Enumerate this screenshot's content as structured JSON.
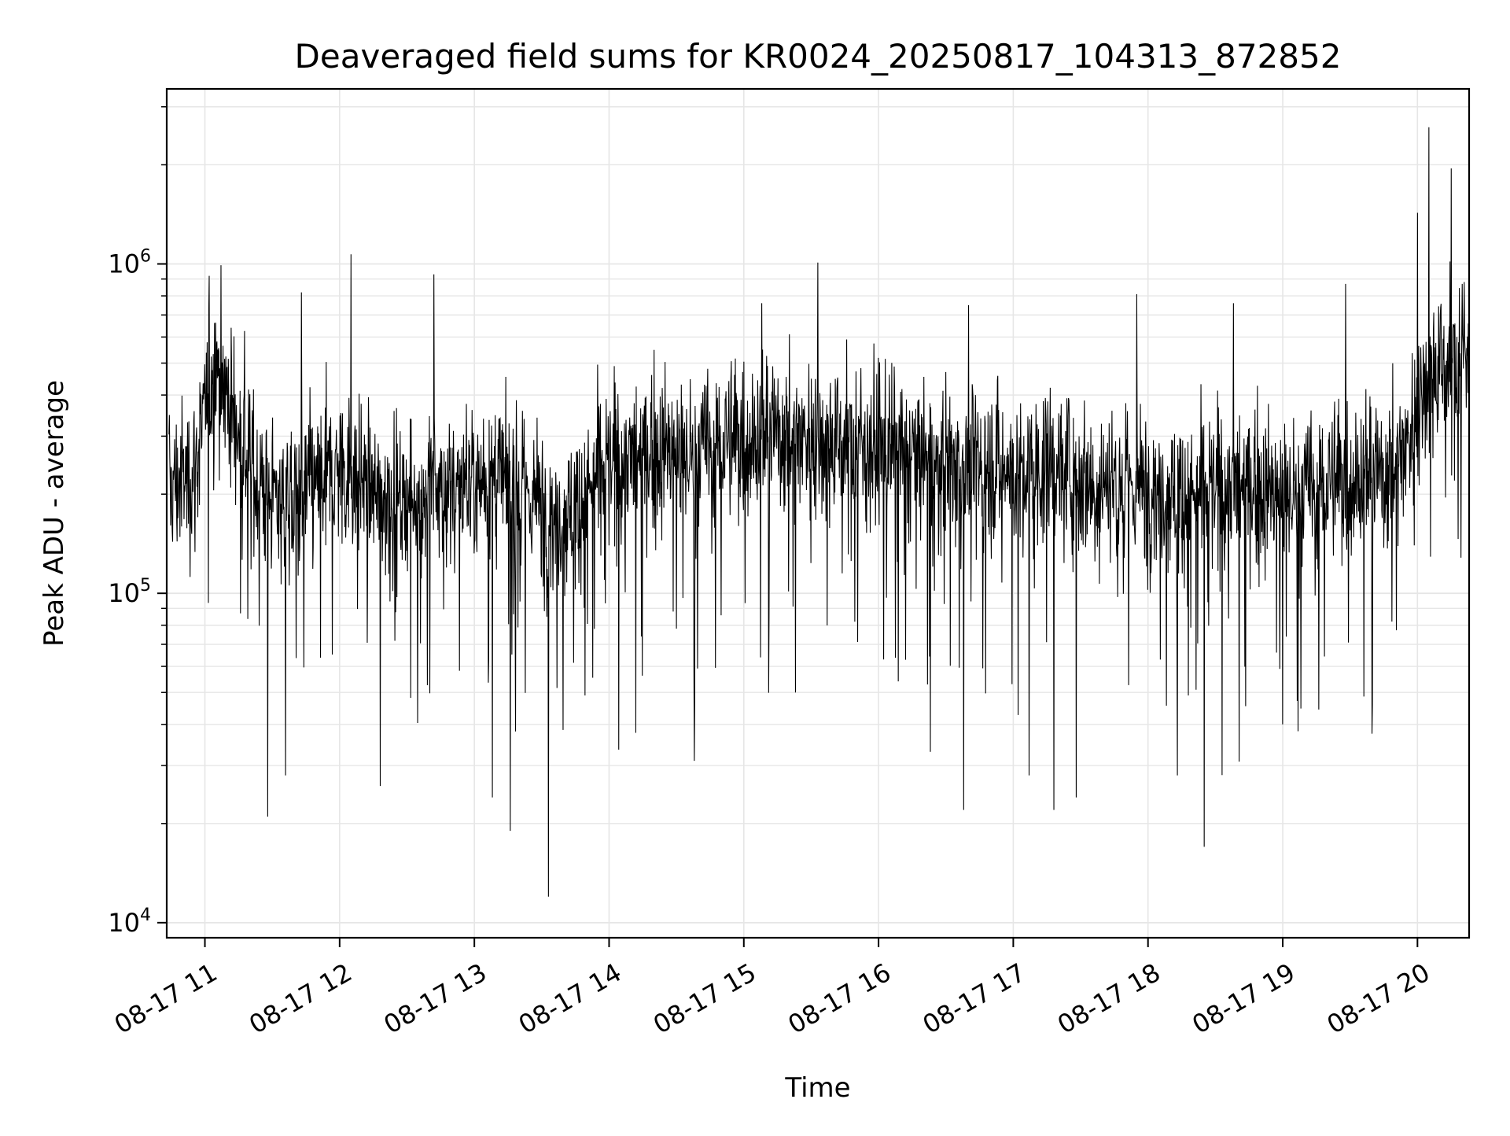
{
  "chart_data": {
    "type": "line",
    "title": "Deaveraged field sums for KR0024_20250817_104313_872852",
    "xlabel": "Time",
    "ylabel": "Peak ADU - average",
    "y_scale": "log",
    "ylim": [
      9000,
      3400000
    ],
    "xlim": [
      "2025-08-17 10:43",
      "2025-08-17 20:23"
    ],
    "grid": true,
    "line_color": "#000000",
    "grid_color": "#e6e6e6",
    "x_ticks": [
      {
        "value": "2025-08-17 11:00",
        "label": "08-17 11"
      },
      {
        "value": "2025-08-17 12:00",
        "label": "08-17 12"
      },
      {
        "value": "2025-08-17 13:00",
        "label": "08-17 13"
      },
      {
        "value": "2025-08-17 14:00",
        "label": "08-17 14"
      },
      {
        "value": "2025-08-17 15:00",
        "label": "08-17 15"
      },
      {
        "value": "2025-08-17 16:00",
        "label": "08-17 16"
      },
      {
        "value": "2025-08-17 17:00",
        "label": "08-17 17"
      },
      {
        "value": "2025-08-17 18:00",
        "label": "08-17 18"
      },
      {
        "value": "2025-08-17 19:00",
        "label": "08-17 19"
      },
      {
        "value": "2025-08-17 20:00",
        "label": "08-17 20"
      }
    ],
    "y_ticks": [
      {
        "value": 10000,
        "base": "10",
        "exp": "4"
      },
      {
        "value": 100000,
        "base": "10",
        "exp": "5"
      },
      {
        "value": 1000000,
        "base": "10",
        "exp": "6"
      }
    ],
    "series": [
      {
        "points": [
          [
            "2025-08-17 10:45",
            210000
          ],
          [
            "2025-08-17 10:55",
            230000
          ],
          [
            "2025-08-17 11:05",
            520000
          ],
          [
            "2025-08-17 11:15",
            300000
          ],
          [
            "2025-08-17 11:25",
            210000
          ],
          [
            "2025-08-17 11:35",
            190000
          ],
          [
            "2025-08-17 11:45",
            200000
          ],
          [
            "2025-08-17 11:55",
            230000
          ],
          [
            "2025-08-17 12:05",
            240000
          ],
          [
            "2025-08-17 12:15",
            200000
          ],
          [
            "2025-08-17 12:25",
            190000
          ],
          [
            "2025-08-17 12:35",
            200000
          ],
          [
            "2025-08-17 12:45",
            210000
          ],
          [
            "2025-08-17 12:55",
            220000
          ],
          [
            "2025-08-17 13:05",
            230000
          ],
          [
            "2025-08-17 13:15",
            210000
          ],
          [
            "2025-08-17 13:25",
            200000
          ],
          [
            "2025-08-17 13:35",
            170000
          ],
          [
            "2025-08-17 13:45",
            180000
          ],
          [
            "2025-08-17 13:55",
            230000
          ],
          [
            "2025-08-17 14:05",
            250000
          ],
          [
            "2025-08-17 14:15",
            260000
          ],
          [
            "2025-08-17 14:25",
            270000
          ],
          [
            "2025-08-17 14:35",
            260000
          ],
          [
            "2025-08-17 14:45",
            280000
          ],
          [
            "2025-08-17 14:55",
            290000
          ],
          [
            "2025-08-17 15:05",
            300000
          ],
          [
            "2025-08-17 15:15",
            310000
          ],
          [
            "2025-08-17 15:25",
            300000
          ],
          [
            "2025-08-17 15:35",
            300000
          ],
          [
            "2025-08-17 15:45",
            290000
          ],
          [
            "2025-08-17 15:55",
            280000
          ],
          [
            "2025-08-17 16:05",
            270000
          ],
          [
            "2025-08-17 16:15",
            260000
          ],
          [
            "2025-08-17 16:25",
            250000
          ],
          [
            "2025-08-17 16:35",
            240000
          ],
          [
            "2025-08-17 16:45",
            250000
          ],
          [
            "2025-08-17 16:55",
            240000
          ],
          [
            "2025-08-17 17:05",
            230000
          ],
          [
            "2025-08-17 17:15",
            240000
          ],
          [
            "2025-08-17 17:25",
            230000
          ],
          [
            "2025-08-17 17:35",
            220000
          ],
          [
            "2025-08-17 17:45",
            220000
          ],
          [
            "2025-08-17 17:55",
            210000
          ],
          [
            "2025-08-17 18:05",
            210000
          ],
          [
            "2025-08-17 18:15",
            200000
          ],
          [
            "2025-08-17 18:25",
            200000
          ],
          [
            "2025-08-17 18:35",
            210000
          ],
          [
            "2025-08-17 18:45",
            210000
          ],
          [
            "2025-08-17 18:55",
            200000
          ],
          [
            "2025-08-17 19:05",
            200000
          ],
          [
            "2025-08-17 19:15",
            210000
          ],
          [
            "2025-08-17 19:25",
            220000
          ],
          [
            "2025-08-17 19:35",
            230000
          ],
          [
            "2025-08-17 19:45",
            230000
          ],
          [
            "2025-08-17 19:55",
            280000
          ],
          [
            "2025-08-17 20:05",
            480000
          ],
          [
            "2025-08-17 20:15",
            500000
          ],
          [
            "2025-08-17 20:22",
            520000
          ]
        ],
        "peaks": [
          [
            "2025-08-17 11:02",
            920000
          ],
          [
            "2025-08-17 11:43",
            820000
          ],
          [
            "2025-08-17 12:05",
            1070000
          ],
          [
            "2025-08-17 12:42",
            930000
          ],
          [
            "2025-08-17 15:33",
            1010000
          ],
          [
            "2025-08-17 15:08",
            760000
          ],
          [
            "2025-08-17 16:40",
            750000
          ],
          [
            "2025-08-17 17:55",
            810000
          ],
          [
            "2025-08-17 18:38",
            760000
          ],
          [
            "2025-08-17 19:28",
            870000
          ],
          [
            "2025-08-17 20:00",
            1430000
          ],
          [
            "2025-08-17 20:05",
            2600000
          ],
          [
            "2025-08-17 20:15",
            1950000
          ],
          [
            "2025-08-17 20:20",
            870000
          ]
        ],
        "dips": [
          [
            "2025-08-17 11:28",
            21000
          ],
          [
            "2025-08-17 11:36",
            28000
          ],
          [
            "2025-08-17 12:18",
            26000
          ],
          [
            "2025-08-17 13:08",
            24000
          ],
          [
            "2025-08-17 13:16",
            19000
          ],
          [
            "2025-08-17 13:33",
            12000
          ],
          [
            "2025-08-17 14:38",
            31000
          ],
          [
            "2025-08-17 15:23",
            50000
          ],
          [
            "2025-08-17 16:23",
            33000
          ],
          [
            "2025-08-17 16:38",
            22000
          ],
          [
            "2025-08-17 17:07",
            28000
          ],
          [
            "2025-08-17 17:18",
            22000
          ],
          [
            "2025-08-17 17:28",
            24000
          ],
          [
            "2025-08-17 18:13",
            28000
          ],
          [
            "2025-08-17 18:25",
            17000
          ],
          [
            "2025-08-17 19:00",
            40000
          ],
          [
            "2025-08-17 19:40",
            46000
          ]
        ]
      }
    ]
  }
}
